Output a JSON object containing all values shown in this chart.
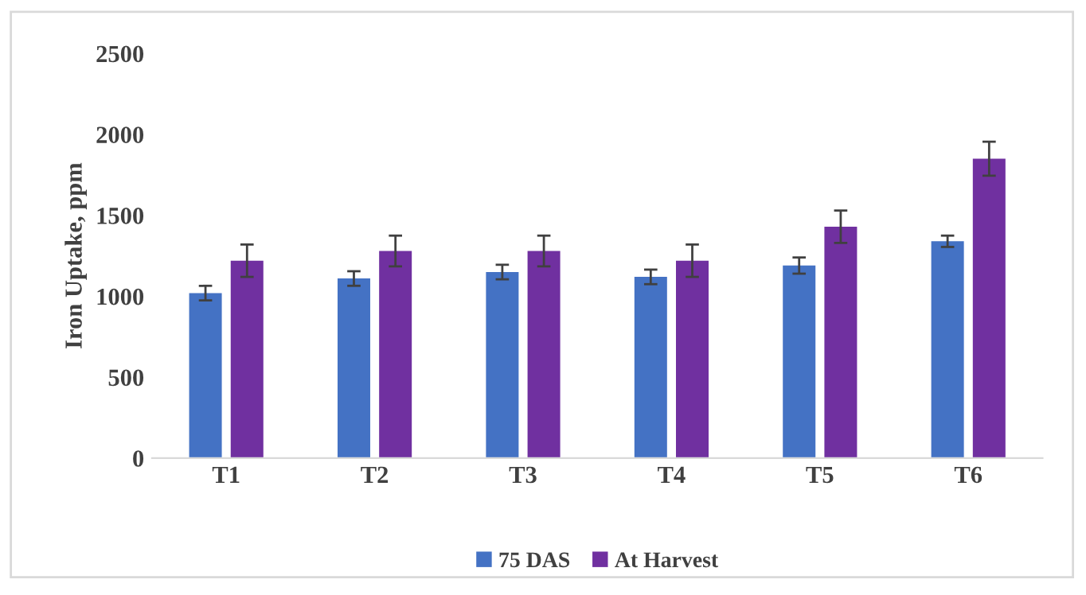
{
  "chart_data": {
    "type": "bar",
    "ylabel": "Iron Uptake, ppm",
    "categories": [
      "T1",
      "T2",
      "T3",
      "T4",
      "T5",
      "T6"
    ],
    "series": [
      {
        "name": "75 DAS",
        "color": "#4472c4",
        "values": [
          1020,
          1110,
          1150,
          1120,
          1190,
          1340
        ],
        "errors": [
          45,
          45,
          45,
          45,
          50,
          35
        ]
      },
      {
        "name": "At Harvest",
        "color": "#7030a0",
        "values": [
          1220,
          1280,
          1280,
          1220,
          1430,
          1850
        ],
        "errors": [
          100,
          95,
          95,
          100,
          100,
          105
        ]
      }
    ],
    "ylim": [
      0,
      2500
    ],
    "yticks": [
      0,
      500,
      1000,
      1500,
      2000,
      2500
    ],
    "grid": false,
    "legend": "bottom"
  }
}
